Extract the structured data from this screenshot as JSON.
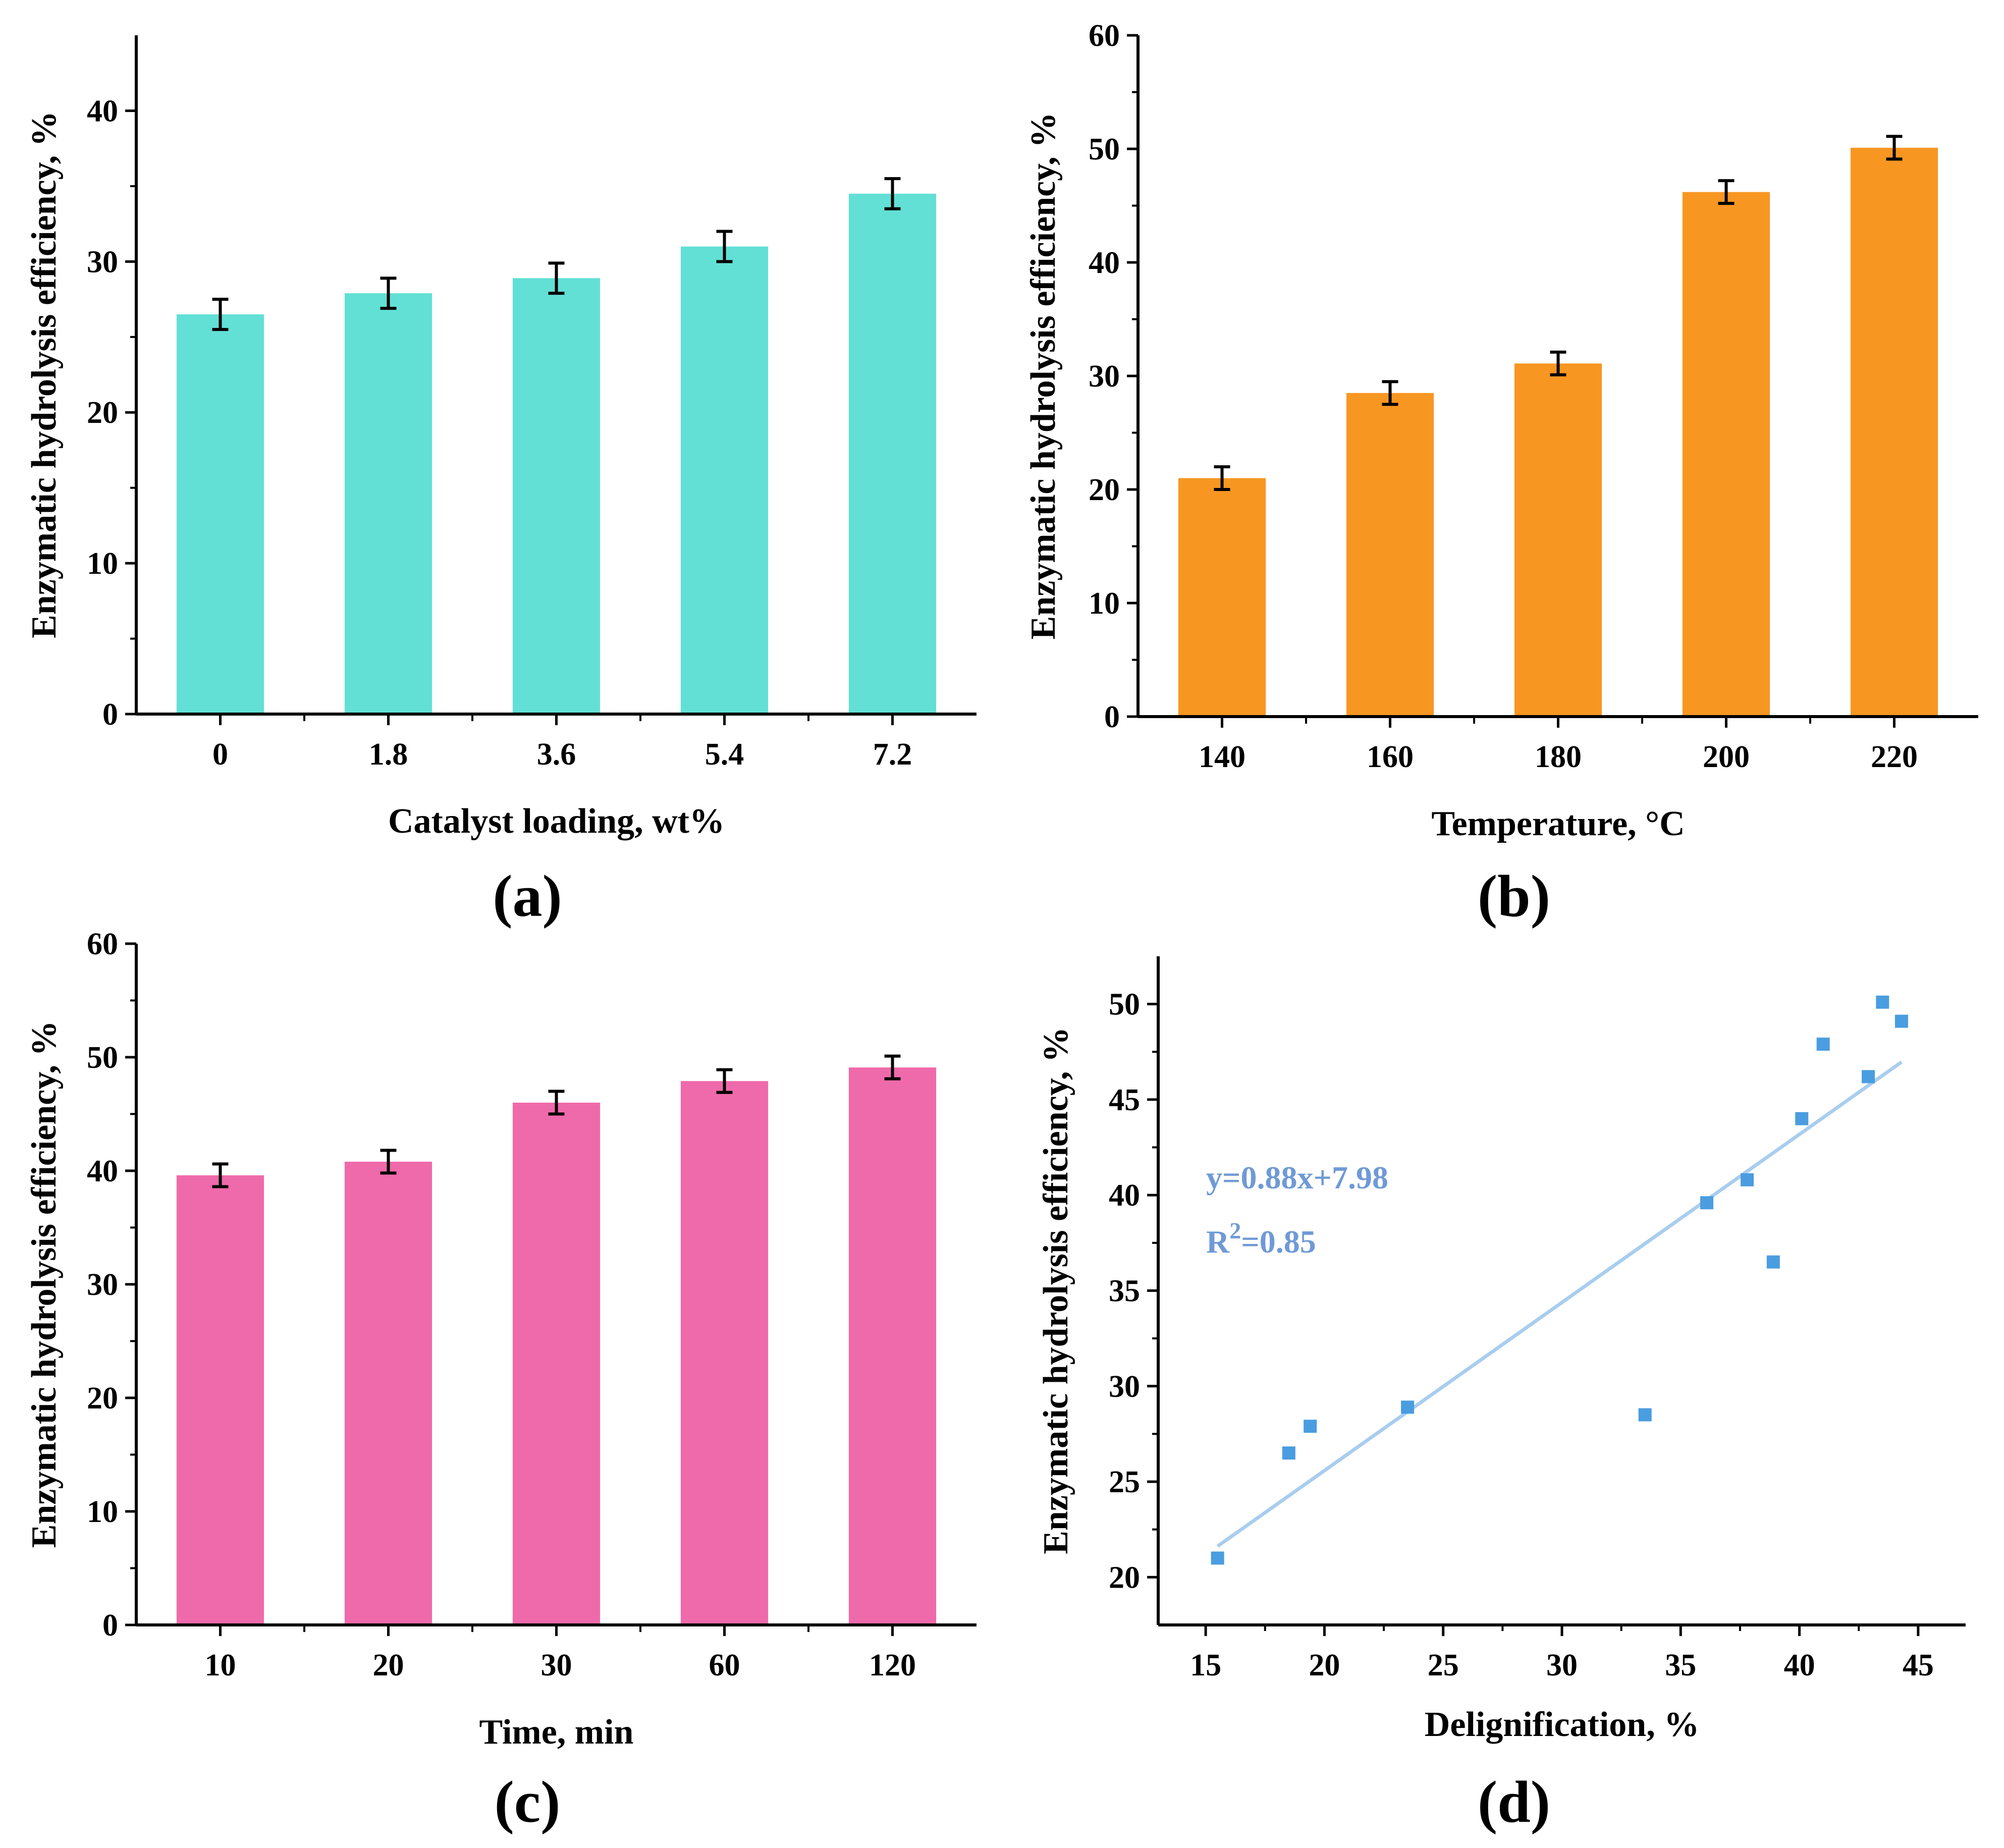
{
  "chart_data": [
    {
      "id": "a",
      "type": "bar",
      "panel_label": "(a)",
      "xlabel": "Catalyst loading, wt%",
      "ylabel": "Enzymatic hydrolysis efficiency, %",
      "categories": [
        "0",
        "1.8",
        "3.6",
        "5.4",
        "7.2"
      ],
      "values": [
        26.5,
        27.9,
        28.9,
        31.0,
        34.5
      ],
      "errors": [
        1.0,
        1.0,
        1.0,
        1.0,
        1.0
      ],
      "ylim": [
        0,
        45
      ],
      "yticks": [
        0,
        10,
        20,
        30,
        40
      ],
      "color": "#62e0d5"
    },
    {
      "id": "b",
      "type": "bar",
      "panel_label": "(b)",
      "xlabel": "Temperature, °C",
      "ylabel": "Enzymatic hydrolysis efficiency, %",
      "categories": [
        "140",
        "160",
        "180",
        "200",
        "220"
      ],
      "values": [
        21.0,
        28.5,
        31.1,
        46.2,
        50.1
      ],
      "errors": [
        1.0,
        1.0,
        1.0,
        1.0,
        1.0
      ],
      "ylim": [
        0,
        60
      ],
      "yticks": [
        0,
        10,
        20,
        30,
        40,
        50,
        60
      ],
      "color": "#f89622"
    },
    {
      "id": "c",
      "type": "bar",
      "panel_label": "(c)",
      "xlabel": "Time, min",
      "ylabel": "Enzymatic hydrolysis efficiency, %",
      "categories": [
        "10",
        "20",
        "30",
        "60",
        "120"
      ],
      "values": [
        39.6,
        40.8,
        46.0,
        47.9,
        49.1
      ],
      "errors": [
        1.0,
        1.0,
        1.0,
        1.0,
        1.0
      ],
      "ylim": [
        0,
        60
      ],
      "yticks": [
        0,
        10,
        20,
        30,
        40,
        50,
        60
      ],
      "color": "#ef6aaa"
    },
    {
      "id": "d",
      "type": "scatter",
      "panel_label": "(d)",
      "xlabel": "Delignification, %",
      "ylabel": "Enzymatic hydrolysis efficiency, %",
      "x": [
        15.5,
        18.5,
        19.4,
        23.5,
        33.5,
        36.1,
        37.8,
        38.9,
        40.1,
        41.0,
        42.9,
        43.5,
        44.3
      ],
      "y": [
        21.0,
        26.5,
        27.9,
        28.9,
        28.5,
        39.6,
        40.8,
        36.5,
        44.0,
        47.9,
        46.2,
        50.1,
        49.1
      ],
      "xlim": [
        13,
        47
      ],
      "ylim": [
        17.5,
        52.5
      ],
      "xticks": [
        15,
        20,
        25,
        30,
        35,
        40,
        45
      ],
      "yticks": [
        20,
        25,
        30,
        35,
        40,
        45,
        50
      ],
      "fit": {
        "slope": 0.88,
        "intercept": 7.98,
        "x_range": [
          15.5,
          44.3
        ]
      },
      "equation": "y=0.88x+7.98",
      "r2_label": "R",
      "r2_sup": "2",
      "r2_value": "=0.85",
      "marker_color": "#4a9de0",
      "fit_color": "#a8cdef",
      "annotation_color": "#6f9ad6"
    }
  ]
}
